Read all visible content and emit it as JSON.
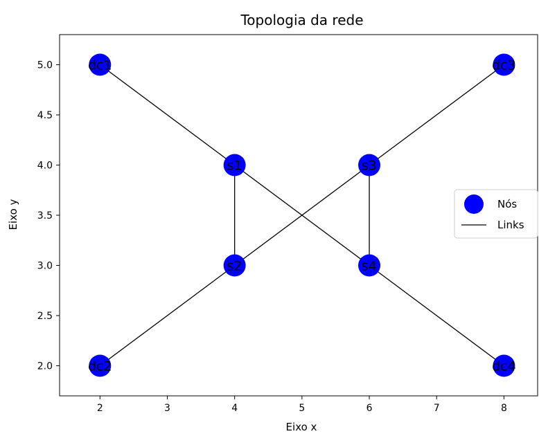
{
  "chart_data": {
    "type": "scatter",
    "title": "Topologia da rede",
    "xlabel": "Eixo x",
    "ylabel": "Eixo y",
    "xlim": [
      1.4,
      8.5
    ],
    "ylim": [
      1.7,
      5.3
    ],
    "xticks": [
      2,
      3,
      4,
      5,
      6,
      7,
      8
    ],
    "xtick_labels": [
      "2",
      "3",
      "4",
      "5",
      "6",
      "7",
      "8"
    ],
    "yticks": [
      2.0,
      2.5,
      3.0,
      3.5,
      4.0,
      4.5,
      5.0
    ],
    "ytick_labels": [
      "2.0",
      "2.5",
      "3.0",
      "3.5",
      "4.0",
      "4.5",
      "5.0"
    ],
    "grid": false,
    "legend": {
      "placement": "center-right",
      "entries": [
        {
          "label": "Nós",
          "marker": "circle",
          "color": "#0000ff"
        },
        {
          "label": "Links",
          "marker": "line",
          "color": "#000000"
        }
      ]
    },
    "series": [
      {
        "name": "Nós",
        "color": "#0000ff",
        "points": [
          {
            "label": "dc1",
            "x": 2,
            "y": 5
          },
          {
            "label": "dc2",
            "x": 2,
            "y": 2
          },
          {
            "label": "dc3",
            "x": 8,
            "y": 5
          },
          {
            "label": "dc4",
            "x": 8,
            "y": 2
          },
          {
            "label": "s1",
            "x": 4,
            "y": 4
          },
          {
            "label": "s2",
            "x": 4,
            "y": 3
          },
          {
            "label": "s3",
            "x": 6,
            "y": 4
          },
          {
            "label": "s4",
            "x": 6,
            "y": 3
          }
        ]
      }
    ],
    "links": [
      {
        "from": "dc1",
        "to": "s1"
      },
      {
        "from": "s1",
        "to": "s2"
      },
      {
        "from": "s1",
        "to": "s4"
      },
      {
        "from": "s2",
        "to": "dc2"
      },
      {
        "from": "s2",
        "to": "s3"
      },
      {
        "from": "s3",
        "to": "dc3"
      },
      {
        "from": "s3",
        "to": "s4"
      },
      {
        "from": "s4",
        "to": "dc4"
      }
    ],
    "link_color": "#000000"
  }
}
